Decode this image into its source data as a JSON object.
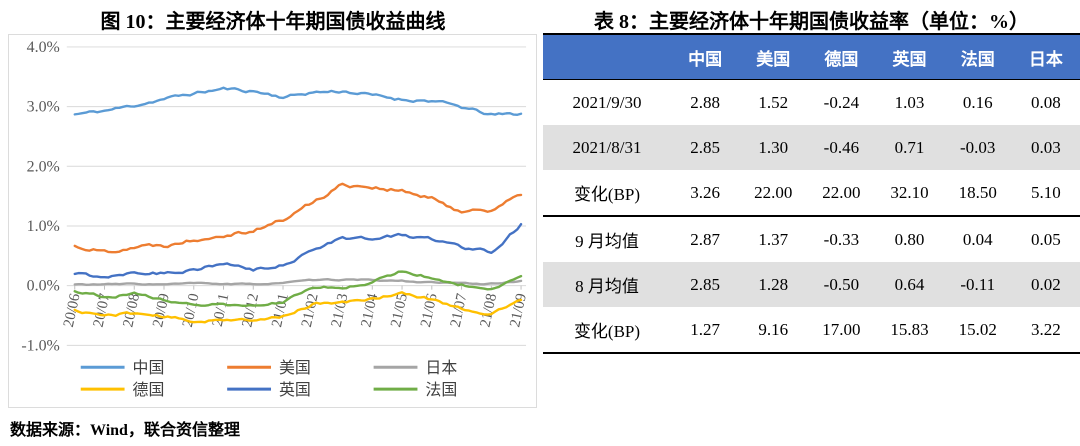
{
  "figure": {
    "title": "图 10：主要经济体十年期国债收益曲线",
    "source_note": "数据来源：Wind，联合资信整理"
  },
  "chart_data": {
    "type": "line",
    "title": "图 10：主要经济体十年期国债收益曲线",
    "xlabel": "",
    "ylabel": "",
    "unit": "%",
    "grid": true,
    "legend_position": "bottom",
    "ylim": [
      -1.0,
      4.0
    ],
    "yticks": [
      4.0,
      3.0,
      2.0,
      1.0,
      0.0,
      -1.0
    ],
    "ytick_labels": [
      "4.0%",
      "3.0%",
      "2.0%",
      "1.0%",
      "0.0%",
      "-1.0%"
    ],
    "x": [
      "20/06",
      "20/07",
      "20/08",
      "20/09",
      "20/10",
      "20/11",
      "20/12",
      "21/01",
      "21/02",
      "21/03",
      "21/04",
      "21/05",
      "21/06",
      "21/07",
      "21/08",
      "21/09"
    ],
    "series": [
      {
        "id": "china",
        "name": "中国",
        "color": "#5B9BD5",
        "values": [
          2.87,
          2.93,
          3.02,
          3.13,
          3.22,
          3.3,
          3.26,
          3.16,
          3.24,
          3.26,
          3.19,
          3.12,
          3.1,
          2.99,
          2.86,
          2.88
        ]
      },
      {
        "id": "usa",
        "name": "美国",
        "color": "#ED7D31",
        "values": [
          0.66,
          0.57,
          0.66,
          0.68,
          0.78,
          0.87,
          0.93,
          1.1,
          1.4,
          1.7,
          1.66,
          1.58,
          1.45,
          1.25,
          1.28,
          1.52
        ]
      },
      {
        "id": "japan",
        "name": "日本",
        "color": "#A5A5A5",
        "values": [
          0.02,
          0.02,
          0.03,
          0.02,
          0.04,
          0.03,
          0.02,
          0.05,
          0.09,
          0.1,
          0.09,
          0.08,
          0.05,
          0.04,
          0.03,
          0.08
        ]
      },
      {
        "id": "germany",
        "name": "德国",
        "color": "#FFC000",
        "values": [
          -0.42,
          -0.5,
          -0.46,
          -0.52,
          -0.6,
          -0.56,
          -0.6,
          -0.51,
          -0.31,
          -0.29,
          -0.21,
          -0.13,
          -0.23,
          -0.38,
          -0.48,
          -0.24
        ]
      },
      {
        "id": "uk",
        "name": "英国",
        "color": "#4472C4",
        "values": [
          0.2,
          0.15,
          0.24,
          0.21,
          0.28,
          0.36,
          0.26,
          0.33,
          0.62,
          0.8,
          0.79,
          0.84,
          0.78,
          0.65,
          0.57,
          1.03
        ]
      },
      {
        "id": "france",
        "name": "法国",
        "color": "#70AD47",
        "values": [
          -0.08,
          -0.18,
          -0.14,
          -0.24,
          -0.3,
          -0.33,
          -0.34,
          -0.27,
          -0.04,
          -0.02,
          0.06,
          0.25,
          0.14,
          0.02,
          -0.06,
          0.16
        ]
      }
    ],
    "legend_order": [
      "中国",
      "美国",
      "日本",
      "德国",
      "英国",
      "法国"
    ]
  },
  "table": {
    "title": "表 8：主要经济体十年期国债收益率（单位：%）",
    "header_bg": "#4472C4",
    "header_text_color": "#FFFFFF",
    "shaded_bg": "#E0E0E0",
    "header": [
      "",
      "中国",
      "美国",
      "德国",
      "英国",
      "法国",
      "日本"
    ],
    "rows": [
      {
        "label": "2021/9/30",
        "values": [
          "2.88",
          "1.52",
          "-0.24",
          "1.03",
          "0.16",
          "0.08"
        ],
        "shaded": false,
        "section_end": false
      },
      {
        "label": "2021/8/31",
        "values": [
          "2.85",
          "1.30",
          "-0.46",
          "0.71",
          "-0.03",
          "0.03"
        ],
        "shaded": true,
        "section_end": false
      },
      {
        "label": "变化(BP)",
        "values": [
          "3.26",
          "22.00",
          "22.00",
          "32.10",
          "18.50",
          "5.10"
        ],
        "shaded": false,
        "section_end": true
      },
      {
        "label": "9 月均值",
        "values": [
          "2.87",
          "1.37",
          "-0.33",
          "0.80",
          "0.04",
          "0.05"
        ],
        "shaded": false,
        "section_end": false
      },
      {
        "label": "8 月均值",
        "values": [
          "2.85",
          "1.28",
          "-0.50",
          "0.64",
          "-0.11",
          "0.02"
        ],
        "shaded": true,
        "section_end": false
      },
      {
        "label": "变化(BP)",
        "values": [
          "1.27",
          "9.16",
          "17.00",
          "15.83",
          "15.02",
          "3.22"
        ],
        "shaded": false,
        "section_end": false
      }
    ]
  }
}
